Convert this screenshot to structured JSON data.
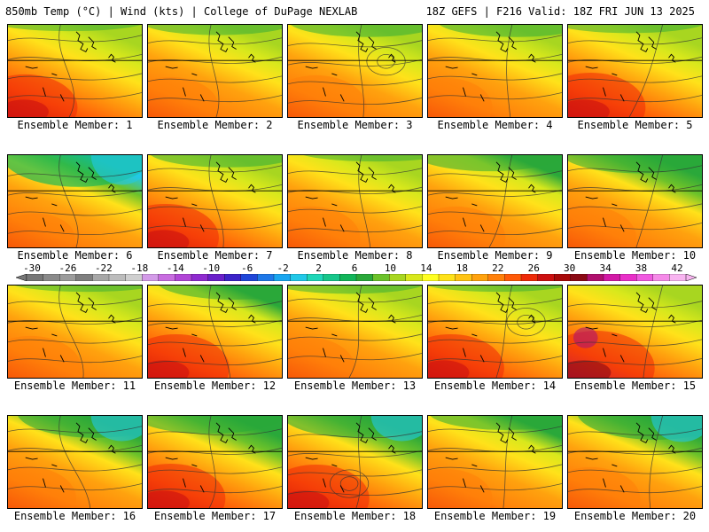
{
  "header": {
    "left": "850mb Temp (°C) | Wind (kts) | College of DuPage NEXLAB",
    "right": "18Z GEFS | F216 Valid: 18Z FRI JUN 13 2025"
  },
  "member_label_prefix": "Ensemble Member:",
  "members": [
    {
      "number": "1",
      "caption": "Ensemble Member: 1",
      "warmth": 0.65,
      "cold": 0.05
    },
    {
      "number": "2",
      "caption": "Ensemble Member: 2",
      "warmth": 0.5,
      "cold": 0.15
    },
    {
      "number": "3",
      "caption": "Ensemble Member: 3",
      "warmth": 0.6,
      "cold": 0.2
    },
    {
      "number": "4",
      "caption": "Ensemble Member: 4",
      "warmth": 0.45,
      "cold": 0.2
    },
    {
      "number": "5",
      "caption": "Ensemble Member: 5",
      "warmth": 0.75,
      "cold": 0.1
    },
    {
      "number": "6",
      "caption": "Ensemble Member: 6",
      "warmth": 0.15,
      "cold": 0.7
    },
    {
      "number": "7",
      "caption": "Ensemble Member: 7",
      "warmth": 0.7,
      "cold": 0.2
    },
    {
      "number": "8",
      "caption": "Ensemble Member: 8",
      "warmth": 0.55,
      "cold": 0.05
    },
    {
      "number": "9",
      "caption": "Ensemble Member: 9",
      "warmth": 0.55,
      "cold": 0.3
    },
    {
      "number": "10",
      "caption": "Ensemble Member: 10",
      "warmth": 0.6,
      "cold": 0.35
    },
    {
      "number": "11",
      "caption": "Ensemble Member: 11",
      "warmth": 0.6,
      "cold": 0.05
    },
    {
      "number": "12",
      "caption": "Ensemble Member: 12",
      "warmth": 0.7,
      "cold": 0.25
    },
    {
      "number": "13",
      "caption": "Ensemble Member: 13",
      "warmth": 0.55,
      "cold": 0.1
    },
    {
      "number": "14",
      "caption": "Ensemble Member: 14",
      "warmth": 0.7,
      "cold": 0.05
    },
    {
      "number": "15",
      "caption": "Ensemble Member: 15",
      "warmth": 0.9,
      "cold": 0.0
    },
    {
      "number": "16",
      "caption": "Ensemble Member: 16",
      "warmth": 0.6,
      "cold": 0.45
    },
    {
      "number": "17",
      "caption": "Ensemble Member: 17",
      "warmth": 0.75,
      "cold": 0.35
    },
    {
      "number": "18",
      "caption": "Ensemble Member: 18",
      "warmth": 0.7,
      "cold": 0.45
    },
    {
      "number": "19",
      "caption": "Ensemble Member: 19",
      "warmth": 0.45,
      "cold": 0.25
    },
    {
      "number": "20",
      "caption": "Ensemble Member: 20",
      "warmth": 0.55,
      "cold": 0.5
    }
  ],
  "colorbar": {
    "labels": [
      "-30",
      "-26",
      "-22",
      "-18",
      "-14",
      "-10",
      "-6",
      "-2",
      "2",
      "6",
      "10",
      "14",
      "18",
      "22",
      "26",
      "30",
      "34",
      "38",
      "42"
    ],
    "colors": [
      "#777777",
      "#8a8a8a",
      "#9c9c9c",
      "#7f7f7f",
      "#a7a7a7",
      "#bcbcbc",
      "#cfcfcf",
      "#d39be8",
      "#c86de0",
      "#b146d6",
      "#8f2bcf",
      "#6a1fc9",
      "#3c23c8",
      "#1f46d8",
      "#1e78e8",
      "#1aa6f0",
      "#22c8e8",
      "#1fd6b8",
      "#17c68a",
      "#12b55a",
      "#2aa83a",
      "#6cc22a",
      "#a8d620",
      "#d8e81c",
      "#ffff22",
      "#ffe21a",
      "#ffc414",
      "#ffa20e",
      "#ff800a",
      "#ff5a08",
      "#ee2a08",
      "#cc1010",
      "#a80a0a",
      "#8a0a14",
      "#b0106e",
      "#d21aa6",
      "#e830c8",
      "#f05ae0",
      "#f58ae8",
      "#f8b4f0"
    ]
  }
}
